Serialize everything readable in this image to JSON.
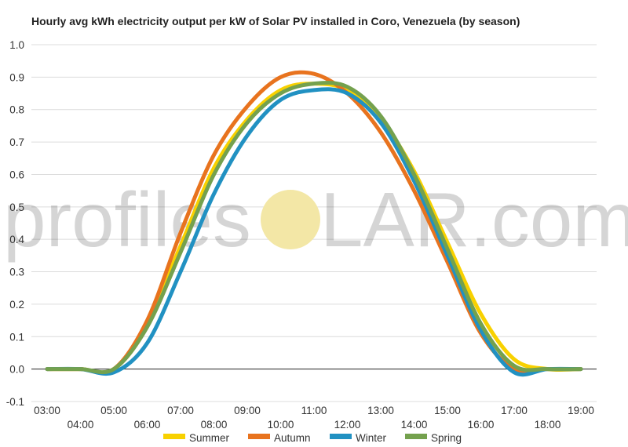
{
  "watermark": {
    "left": "profiles",
    "right": "LAR.com",
    "sun_color": "#f3e7a6"
  },
  "chart_data": {
    "type": "line",
    "title": "Hourly avg kWh electricity output per kW of Solar PV installed in Coro, Venezuela (by season)",
    "xlabel": "",
    "ylabel": "",
    "xlim": [
      3,
      19
    ],
    "ylim": [
      -0.1,
      1.0
    ],
    "yticks": [
      -0.1,
      0.0,
      0.1,
      0.2,
      0.3,
      0.4,
      0.5,
      0.6,
      0.7,
      0.8,
      0.9,
      1.0
    ],
    "ytick_labels": [
      "-0.1",
      "0.0",
      "0.1",
      "0.2",
      "0.3",
      "0.4",
      "0.5",
      "0.6",
      "0.7",
      "0.8",
      "0.9",
      "1.0"
    ],
    "x": [
      3,
      4,
      5,
      6,
      7,
      8,
      9,
      10,
      11,
      12,
      13,
      14,
      15,
      16,
      17,
      18,
      19
    ],
    "xtick_labels": [
      "03:00",
      "04:00",
      "05:00",
      "06:00",
      "07:00",
      "08:00",
      "09:00",
      "10:00",
      "11:00",
      "12:00",
      "13:00",
      "14:00",
      "15:00",
      "16:00",
      "17:00",
      "18:00",
      "19:00"
    ],
    "grid": true,
    "legend_position": "bottom",
    "series": [
      {
        "name": "Summer",
        "color": "#f8d100",
        "values": [
          0.0,
          0.0,
          0.0,
          0.14,
          0.38,
          0.62,
          0.77,
          0.86,
          0.88,
          0.86,
          0.77,
          0.61,
          0.39,
          0.17,
          0.03,
          0.0,
          0.0
        ]
      },
      {
        "name": "Autumn",
        "color": "#e8731e",
        "values": [
          0.0,
          0.0,
          0.0,
          0.15,
          0.42,
          0.66,
          0.81,
          0.9,
          0.91,
          0.85,
          0.73,
          0.55,
          0.33,
          0.11,
          0.0,
          0.0,
          0.0
        ]
      },
      {
        "name": "Winter",
        "color": "#2191c2",
        "values": [
          0.0,
          0.0,
          -0.01,
          0.08,
          0.3,
          0.54,
          0.72,
          0.83,
          0.86,
          0.85,
          0.76,
          0.58,
          0.35,
          0.12,
          -0.01,
          0.0,
          0.0
        ]
      },
      {
        "name": "Spring",
        "color": "#74a14e",
        "values": [
          0.0,
          0.0,
          0.0,
          0.13,
          0.36,
          0.6,
          0.76,
          0.85,
          0.88,
          0.87,
          0.78,
          0.6,
          0.37,
          0.14,
          0.01,
          0.0,
          0.0
        ]
      }
    ]
  }
}
